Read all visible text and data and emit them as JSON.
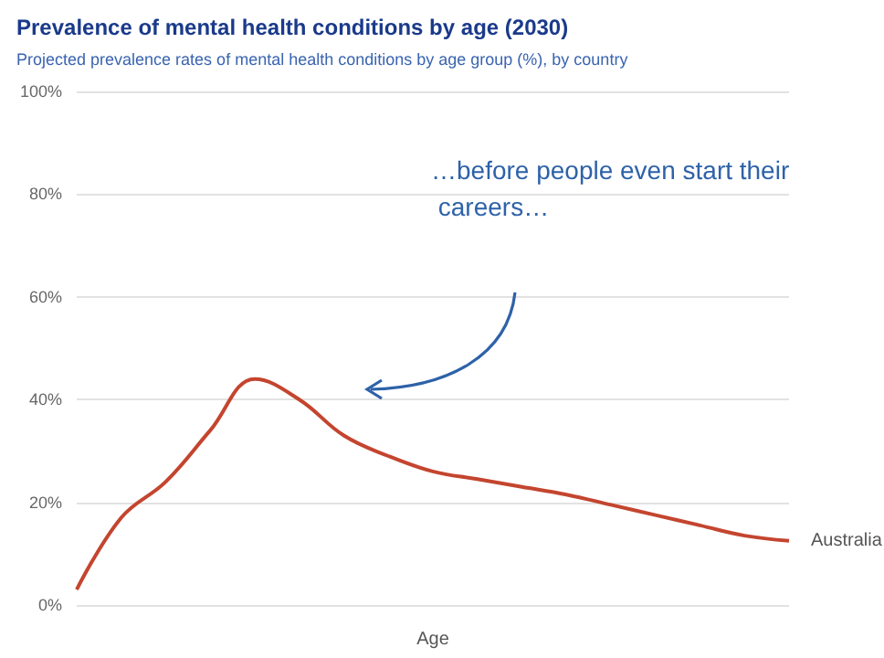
{
  "chart_data": {
    "type": "line",
    "title": "Prevalence of mental health conditions by age (2030)",
    "subtitle": "Projected prevalence rates of mental health conditions by age group (%), by country",
    "xlabel": "Age",
    "categories": [
      null,
      null,
      null,
      null,
      null,
      null,
      null,
      null,
      null,
      null,
      null,
      null,
      null,
      null,
      null,
      null,
      null
    ],
    "series": [
      {
        "name": "Australia",
        "color": "#c4452f",
        "values": [
          3,
          17,
          24,
          34,
          44,
          40,
          33,
          29,
          26,
          24.5,
          23,
          21.5,
          19.5,
          17.5,
          15.5,
          13.5,
          12.5
        ]
      }
    ],
    "ylim": [
      0,
      100
    ],
    "yticks": [
      {
        "value": 0,
        "label": "0%"
      },
      {
        "value": 20,
        "label": "20%"
      },
      {
        "value": 40,
        "label": "40%"
      },
      {
        "value": 60,
        "label": "60%"
      },
      {
        "value": 80,
        "label": "80%"
      },
      {
        "value": 100,
        "label": "100%"
      }
    ],
    "grid": "y",
    "marker": "none",
    "annotations": [
      "…before people even start their careers…"
    ]
  }
}
